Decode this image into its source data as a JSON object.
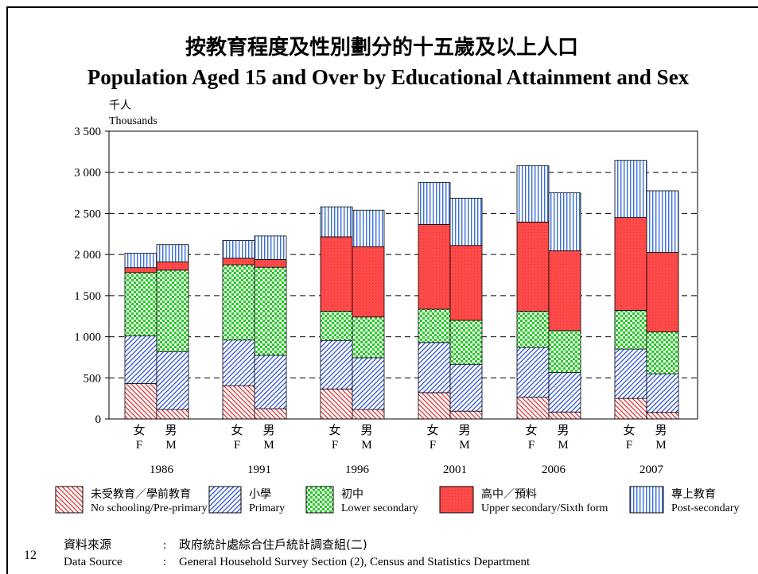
{
  "page_number": "12",
  "source": {
    "label_zh": "資料來源",
    "label_en": "Data Source",
    "text_zh": "政府統計處綜合住戶統計調查組(二)",
    "text_en": "General Household Survey Section (2), Census and Statistics Department"
  },
  "chart_data": {
    "type": "bar",
    "stacked": true,
    "title_zh": "按教育程度及性別劃分的十五歲及以上人口",
    "title_en": "Population Aged 15 and Over by Educational Attainment and Sex",
    "ylabel_zh": "千人",
    "ylabel_en": "Thousands",
    "ylim": [
      0,
      3500
    ],
    "yticks": [
      0,
      500,
      1000,
      1500,
      2000,
      2500,
      3000,
      3500
    ],
    "ytick_labels": [
      "0",
      "500",
      "1 000",
      "1 500",
      "2 000",
      "2 500",
      "3 000",
      "3 500"
    ],
    "grid": "horizontal dashed",
    "legend_position": "bottom",
    "years": [
      "1986",
      "1991",
      "1996",
      "2001",
      "2006",
      "2007"
    ],
    "sex_labels_zh": [
      "女",
      "男"
    ],
    "sex_labels_en": [
      "F",
      "M"
    ],
    "categories": [
      "1986 F",
      "1986 M",
      "1991 F",
      "1991 M",
      "1996 F",
      "1996 M",
      "2001 F",
      "2001 M",
      "2006 F",
      "2006 M",
      "2007 F",
      "2007 M"
    ],
    "series": [
      {
        "name_zh": "未受教育／學前教育",
        "name_en": "No schooling/Pre-primary",
        "color": "#e84040",
        "pattern": "diag-down",
        "values": [
          430,
          115,
          405,
          125,
          365,
          115,
          320,
          95,
          265,
          85,
          250,
          80
        ]
      },
      {
        "name_zh": "小學",
        "name_en": "Primary",
        "color": "#2a4fd8",
        "pattern": "diag-up",
        "values": [
          580,
          705,
          555,
          650,
          590,
          630,
          610,
          570,
          605,
          480,
          600,
          470
        ]
      },
      {
        "name_zh": "初中",
        "name_en": "Lower secondary",
        "color": "#22cc22",
        "pattern": "checker",
        "values": [
          770,
          990,
          915,
          1070,
          355,
          495,
          405,
          535,
          440,
          510,
          470,
          510
        ]
      },
      {
        "name_zh": "高中／預料",
        "name_en": "Upper secondary/Sixth form",
        "color": "#ff4040",
        "pattern": "solid-dots",
        "values": [
          60,
          100,
          80,
          95,
          905,
          855,
          1030,
          910,
          1085,
          970,
          1130,
          965
        ]
      },
      {
        "name_zh": "專上教育",
        "name_en": "Post-secondary",
        "color": "#3a6fd8",
        "pattern": "vertical",
        "values": [
          175,
          210,
          215,
          285,
          365,
          445,
          510,
          575,
          685,
          705,
          695,
          750
        ]
      }
    ]
  },
  "colors": {
    "frame": "#000000",
    "grid": "#000000"
  }
}
